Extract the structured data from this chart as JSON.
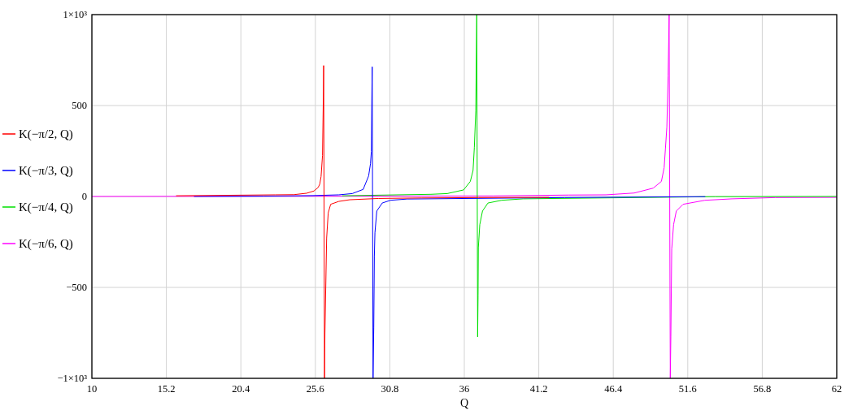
{
  "chart_data": {
    "type": "line",
    "xlabel": "Q",
    "xlim": [
      10,
      62
    ],
    "ylim": [
      -1000,
      1000
    ],
    "xticks": [
      10,
      15.2,
      20.4,
      25.6,
      30.8,
      36,
      41.2,
      46.4,
      51.6,
      56.8,
      62
    ],
    "yticks": [
      {
        "value": -1000,
        "label": "−1×10³"
      },
      {
        "value": -500,
        "label": "−500"
      },
      0,
      500,
      {
        "value": 1000,
        "label": "1×10³"
      }
    ],
    "grid": true,
    "legend": "left",
    "series": [
      {
        "name": "K(−π/2, Q)",
        "color": "#ff0000",
        "x": [
          15.9,
          22.8,
          24.1,
          25,
          25.5,
          25.8,
          25.91,
          26.0,
          26.1,
          26.15,
          26.18,
          26.24,
          26.27,
          26.39,
          26.5,
          26.67,
          27.24,
          28,
          30,
          33,
          37,
          41.9
        ],
        "values": [
          4,
          9,
          10,
          18,
          30,
          50,
          68,
          110,
          225,
          500,
          720,
          -1000,
          -750,
          -228,
          -90,
          -43,
          -27,
          -18,
          -11,
          -8,
          -6,
          -5
        ]
      },
      {
        "name": "K(−π/3, Q)",
        "color": "#0000ff",
        "x": [
          17.15,
          22,
          25.44,
          27.24,
          28.18,
          28.94,
          29.32,
          29.45,
          29.51,
          29.54,
          29.57,
          29.63,
          29.68,
          29.72,
          29.76,
          29.89,
          30.27,
          30.84,
          32,
          43,
          52.8
        ],
        "values": [
          0,
          2,
          5,
          9,
          16,
          39,
          113,
          180,
          247,
          509,
          713,
          -1000,
          -719,
          -330,
          -200,
          -80,
          -36,
          -21,
          -14,
          -6,
          -1
        ]
      },
      {
        "name": "K(−π/4, Q)",
        "color": "#00e000",
        "x": [
          27.5,
          33.67,
          34.81,
          35.95,
          36.42,
          36.61,
          36.7,
          36.8,
          36.87,
          36.93,
          36.96,
          36.98,
          37.08,
          37.27,
          37.65,
          38.6,
          40.1,
          53.5,
          62
        ],
        "values": [
          4,
          12,
          16,
          36,
          83,
          143,
          269,
          470,
          1000,
          -772,
          -542,
          -281,
          -155,
          -80,
          -36,
          -21,
          -13,
          -1,
          0
        ]
      },
      {
        "name": "K(−π/6, Q)",
        "color": "#ff00ff",
        "x": [
          10,
          38,
          43.3,
          45.88,
          47.86,
          49.19,
          49.76,
          49.95,
          50.04,
          50.14,
          50.23,
          50.3,
          50.38,
          50.42,
          50.48,
          50.61,
          50.8,
          51.27,
          52.79,
          54.68,
          57.7,
          62
        ],
        "values": [
          0,
          3,
          8,
          9,
          19,
          46,
          83,
          158,
          262,
          381,
          664,
          1000,
          -1000,
          -772,
          -289,
          -155,
          -80,
          -43,
          -21,
          -13,
          -6,
          -5
        ]
      }
    ]
  }
}
